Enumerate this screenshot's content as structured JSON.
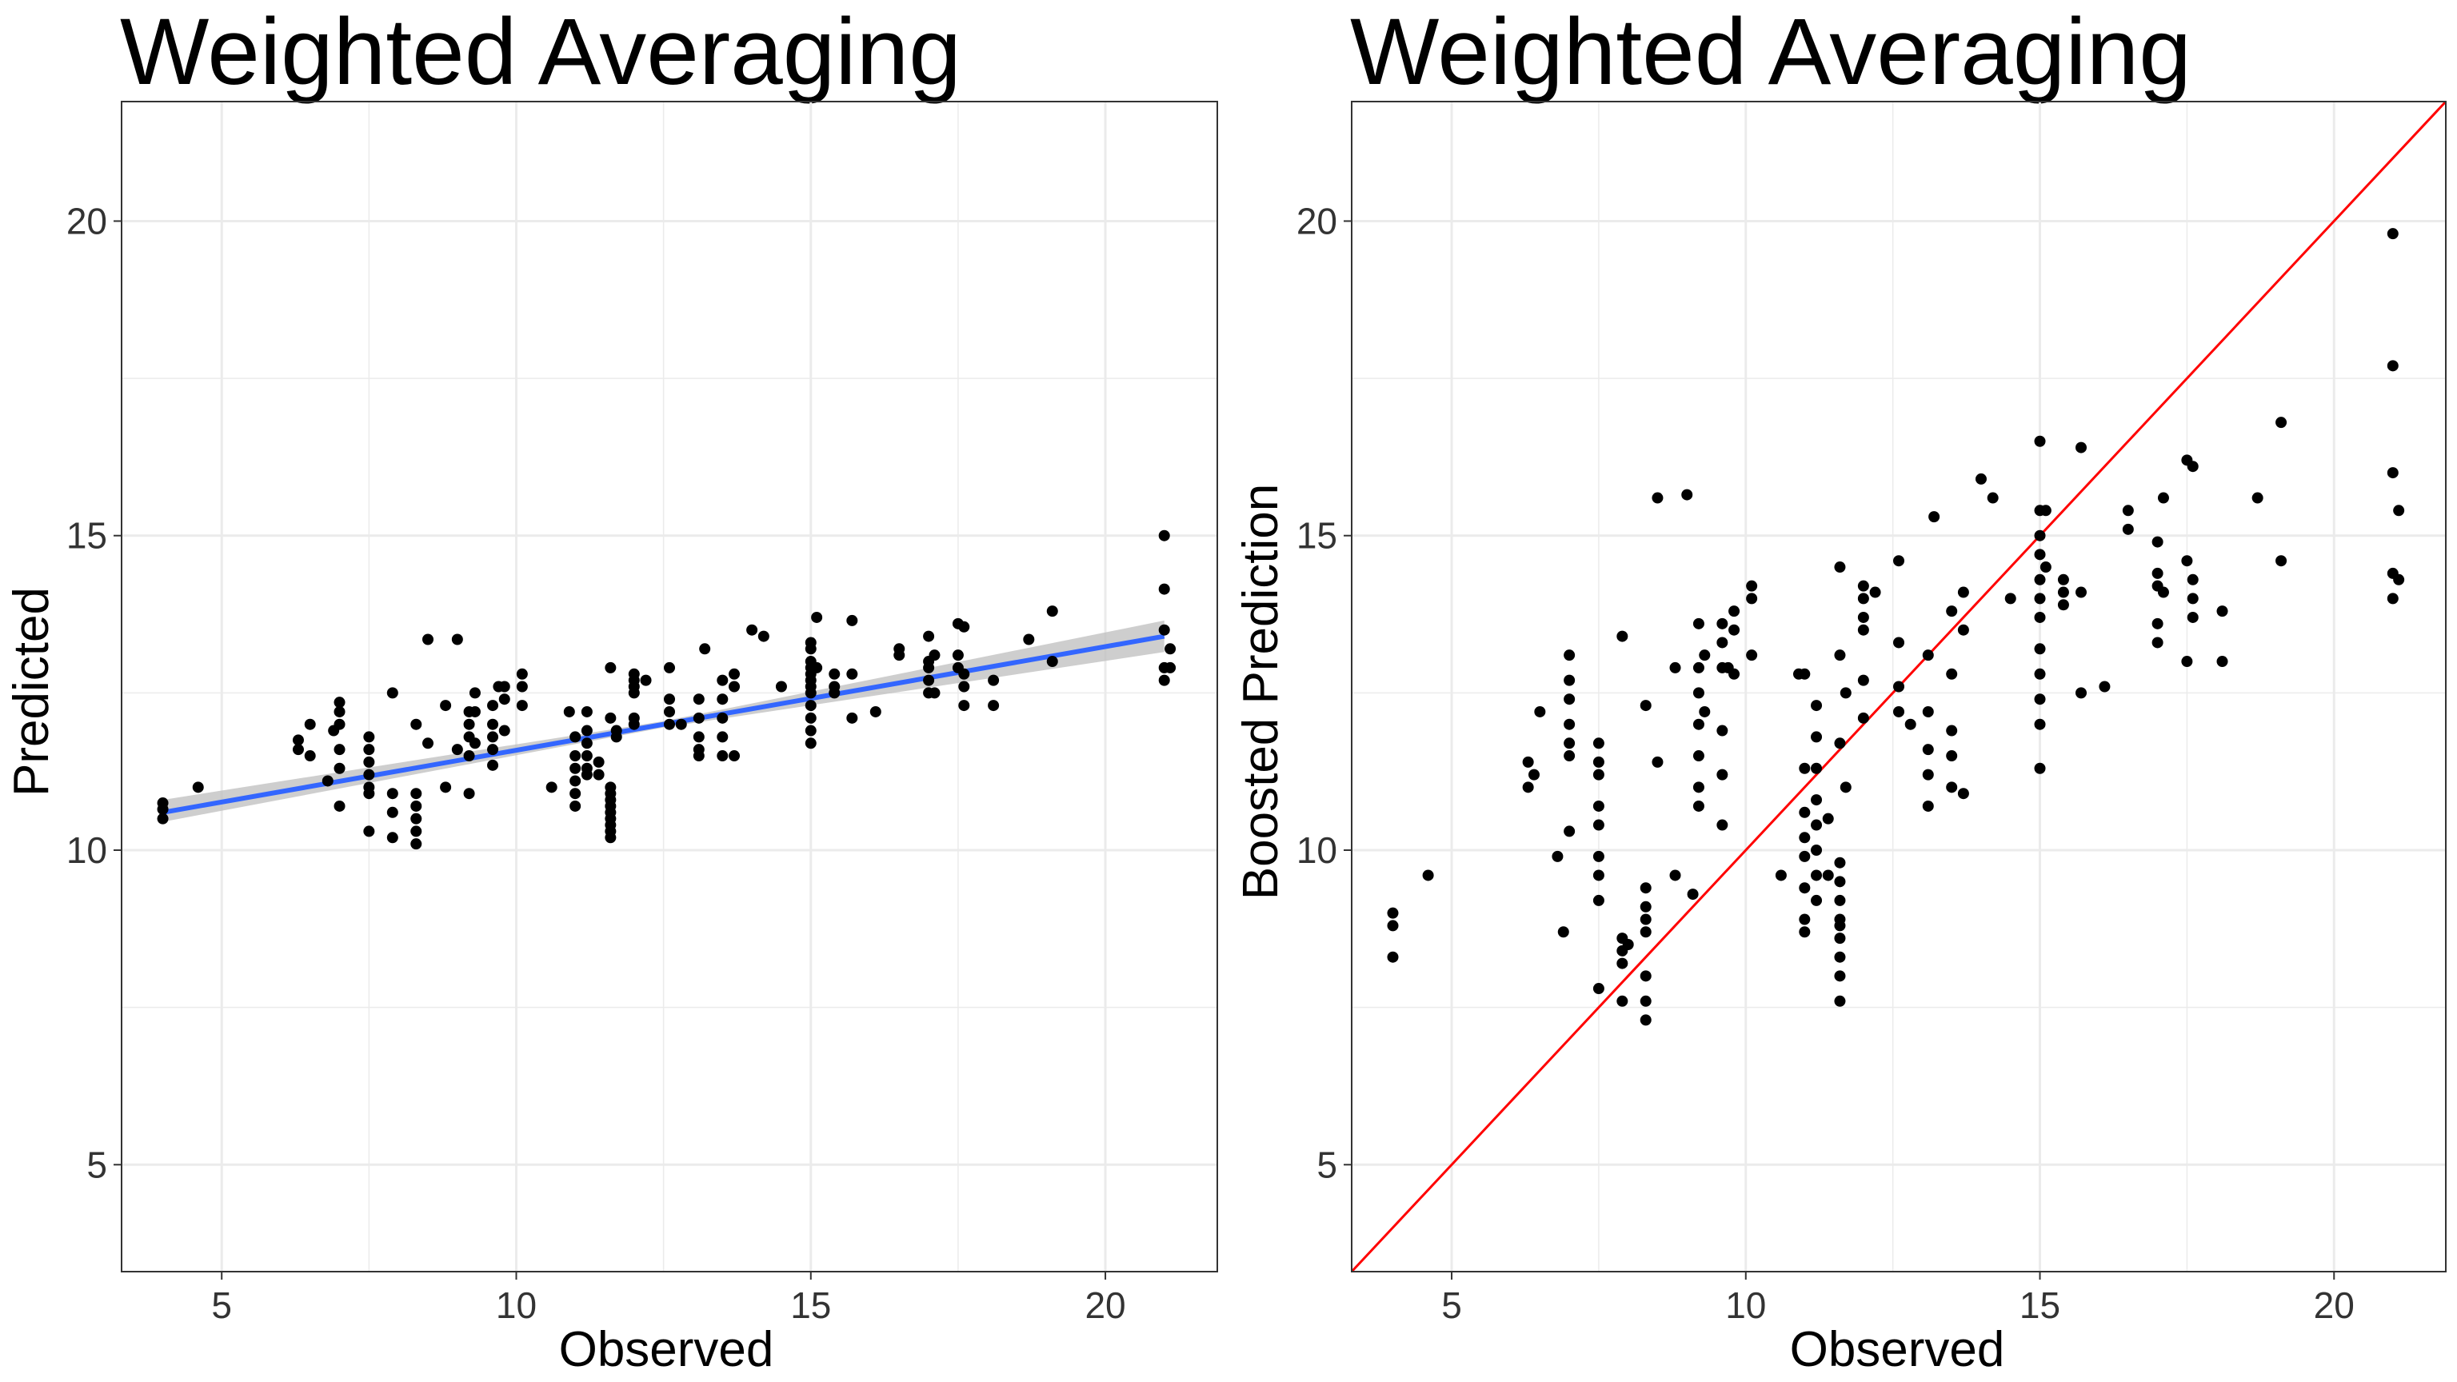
{
  "colors": {
    "background": "#ffffff",
    "grid": "#ebebeb",
    "panel_border": "#333333",
    "points": "#000000",
    "fit_line": "#3366ff",
    "confidence_band": "#bebebe",
    "identity_line": "#ff0000"
  },
  "chart_data": [
    {
      "type": "scatter",
      "title": "Weighted Averaging",
      "xlabel": "Observed",
      "ylabel": "Predicted",
      "xlim": [
        3.3,
        21.9
      ],
      "ylim": [
        3.3,
        21.9
      ],
      "x_ticks": [
        5,
        10,
        15,
        20
      ],
      "y_ticks": [
        5,
        10,
        15,
        20
      ],
      "grid": true,
      "smooth": {
        "method": "lm",
        "x": [
          4.0,
          21.0
        ],
        "y": [
          10.6,
          13.4
        ],
        "se_band": [
          [
            4.0,
            10.45,
            10.8
          ],
          [
            12.5,
            11.95,
            12.05
          ],
          [
            21.0,
            13.15,
            13.65
          ]
        ]
      },
      "points": [
        [
          4.0,
          10.5
        ],
        [
          4.0,
          10.65
        ],
        [
          4.0,
          10.75
        ],
        [
          4.6,
          11.0
        ],
        [
          6.3,
          11.6
        ],
        [
          6.3,
          11.75
        ],
        [
          6.5,
          12.0
        ],
        [
          6.5,
          11.5
        ],
        [
          6.8,
          11.1
        ],
        [
          6.9,
          11.9
        ],
        [
          7.0,
          12.0
        ],
        [
          7.0,
          12.2
        ],
        [
          7.0,
          12.35
        ],
        [
          7.0,
          11.6
        ],
        [
          7.0,
          11.3
        ],
        [
          7.0,
          10.7
        ],
        [
          7.5,
          11.8
        ],
        [
          7.5,
          11.6
        ],
        [
          7.5,
          11.4
        ],
        [
          7.5,
          11.2
        ],
        [
          7.5,
          11.0
        ],
        [
          7.5,
          10.9
        ],
        [
          7.5,
          10.3
        ],
        [
          7.9,
          12.5
        ],
        [
          7.9,
          10.9
        ],
        [
          7.9,
          10.6
        ],
        [
          7.9,
          10.2
        ],
        [
          8.3,
          12.0
        ],
        [
          8.3,
          10.9
        ],
        [
          8.3,
          10.7
        ],
        [
          8.3,
          10.5
        ],
        [
          8.3,
          10.3
        ],
        [
          8.3,
          10.1
        ],
        [
          8.5,
          13.35
        ],
        [
          8.5,
          11.7
        ],
        [
          8.8,
          12.3
        ],
        [
          8.8,
          11.0
        ],
        [
          9.0,
          13.35
        ],
        [
          9.0,
          11.6
        ],
        [
          9.2,
          12.2
        ],
        [
          9.2,
          12.0
        ],
        [
          9.2,
          11.8
        ],
        [
          9.2,
          11.5
        ],
        [
          9.2,
          10.9
        ],
        [
          9.3,
          12.5
        ],
        [
          9.3,
          12.2
        ],
        [
          9.3,
          11.7
        ],
        [
          9.6,
          12.3
        ],
        [
          9.6,
          12.0
        ],
        [
          9.6,
          11.8
        ],
        [
          9.6,
          11.6
        ],
        [
          9.6,
          11.35
        ],
        [
          9.7,
          12.6
        ],
        [
          9.8,
          12.6
        ],
        [
          9.8,
          12.4
        ],
        [
          9.8,
          11.9
        ],
        [
          10.1,
          12.8
        ],
        [
          10.1,
          12.6
        ],
        [
          10.1,
          12.3
        ],
        [
          10.6,
          11.0
        ],
        [
          10.9,
          12.2
        ],
        [
          11.0,
          11.8
        ],
        [
          11.0,
          11.5
        ],
        [
          11.0,
          11.3
        ],
        [
          11.0,
          11.1
        ],
        [
          11.0,
          10.9
        ],
        [
          11.0,
          10.7
        ],
        [
          11.2,
          12.2
        ],
        [
          11.2,
          11.9
        ],
        [
          11.2,
          11.7
        ],
        [
          11.2,
          11.5
        ],
        [
          11.2,
          11.3
        ],
        [
          11.2,
          11.2
        ],
        [
          11.4,
          11.4
        ],
        [
          11.4,
          11.2
        ],
        [
          11.6,
          12.9
        ],
        [
          11.6,
          12.1
        ],
        [
          11.6,
          11.0
        ],
        [
          11.6,
          10.8
        ],
        [
          11.6,
          10.6
        ],
        [
          11.6,
          10.4
        ],
        [
          11.6,
          10.2
        ],
        [
          11.6,
          10.3
        ],
        [
          11.6,
          10.5
        ],
        [
          11.6,
          10.7
        ],
        [
          11.6,
          10.9
        ],
        [
          11.7,
          11.8
        ],
        [
          11.7,
          11.9
        ],
        [
          12.0,
          12.8
        ],
        [
          12.0,
          12.7
        ],
        [
          12.0,
          12.6
        ],
        [
          12.0,
          12.5
        ],
        [
          12.0,
          12.1
        ],
        [
          12.0,
          12.0
        ],
        [
          12.2,
          12.7
        ],
        [
          12.6,
          12.9
        ],
        [
          12.6,
          12.4
        ],
        [
          12.6,
          12.2
        ],
        [
          12.6,
          12.0
        ],
        [
          12.8,
          12.0
        ],
        [
          13.1,
          12.4
        ],
        [
          13.1,
          12.1
        ],
        [
          13.1,
          11.8
        ],
        [
          13.1,
          11.6
        ],
        [
          13.1,
          11.5
        ],
        [
          13.2,
          13.2
        ],
        [
          13.5,
          12.7
        ],
        [
          13.5,
          12.4
        ],
        [
          13.5,
          12.1
        ],
        [
          13.5,
          11.8
        ],
        [
          13.5,
          11.5
        ],
        [
          13.7,
          12.8
        ],
        [
          13.7,
          12.6
        ],
        [
          13.7,
          11.5
        ],
        [
          14.0,
          13.5
        ],
        [
          14.2,
          13.4
        ],
        [
          14.5,
          12.6
        ],
        [
          15.0,
          13.3
        ],
        [
          15.0,
          13.2
        ],
        [
          15.0,
          13.0
        ],
        [
          15.0,
          12.9
        ],
        [
          15.0,
          12.8
        ],
        [
          15.0,
          12.7
        ],
        [
          15.0,
          12.5
        ],
        [
          15.0,
          12.3
        ],
        [
          15.0,
          12.1
        ],
        [
          15.0,
          11.9
        ],
        [
          15.0,
          11.7
        ],
        [
          15.0,
          12.6
        ],
        [
          15.1,
          13.7
        ],
        [
          15.1,
          12.9
        ],
        [
          15.4,
          12.8
        ],
        [
          15.4,
          12.6
        ],
        [
          15.4,
          12.5
        ],
        [
          15.7,
          13.65
        ],
        [
          15.7,
          12.8
        ],
        [
          15.7,
          12.1
        ],
        [
          16.1,
          12.2
        ],
        [
          16.5,
          13.2
        ],
        [
          16.5,
          13.1
        ],
        [
          17.0,
          13.4
        ],
        [
          17.0,
          13.0
        ],
        [
          17.0,
          12.9
        ],
        [
          17.0,
          12.7
        ],
        [
          17.0,
          12.5
        ],
        [
          17.1,
          13.1
        ],
        [
          17.1,
          12.5
        ],
        [
          17.5,
          13.6
        ],
        [
          17.5,
          13.1
        ],
        [
          17.5,
          12.9
        ],
        [
          17.6,
          13.55
        ],
        [
          17.6,
          12.8
        ],
        [
          17.6,
          12.6
        ],
        [
          17.6,
          12.3
        ],
        [
          18.1,
          12.7
        ],
        [
          18.1,
          12.3
        ],
        [
          18.7,
          13.35
        ],
        [
          19.1,
          13.8
        ],
        [
          19.1,
          13.0
        ],
        [
          21.0,
          15.0
        ],
        [
          21.0,
          14.15
        ],
        [
          21.0,
          13.5
        ],
        [
          21.0,
          12.9
        ],
        [
          21.0,
          12.7
        ],
        [
          21.1,
          13.2
        ],
        [
          21.1,
          12.9
        ]
      ]
    },
    {
      "type": "scatter",
      "title": "Weighted Averaging",
      "xlabel": "Observed",
      "ylabel": "Boosted Prediction",
      "xlim": [
        3.3,
        21.9
      ],
      "ylim": [
        3.3,
        21.9
      ],
      "x_ticks": [
        5,
        10,
        15,
        20
      ],
      "y_ticks": [
        5,
        10,
        15,
        20
      ],
      "grid": true,
      "reference_line": {
        "slope": 1,
        "intercept": 0
      },
      "points": [
        [
          4.0,
          9.0
        ],
        [
          4.0,
          8.8
        ],
        [
          4.0,
          8.3
        ],
        [
          4.6,
          9.6
        ],
        [
          6.3,
          11.0
        ],
        [
          6.3,
          11.4
        ],
        [
          6.4,
          11.2
        ],
        [
          6.5,
          12.2
        ],
        [
          6.8,
          9.9
        ],
        [
          6.9,
          8.7
        ],
        [
          7.0,
          13.1
        ],
        [
          7.0,
          12.7
        ],
        [
          7.0,
          12.4
        ],
        [
          7.0,
          11.7
        ],
        [
          7.0,
          11.5
        ],
        [
          7.0,
          10.3
        ],
        [
          7.0,
          12.0
        ],
        [
          7.5,
          11.7
        ],
        [
          7.5,
          11.4
        ],
        [
          7.5,
          11.2
        ],
        [
          7.5,
          10.7
        ],
        [
          7.5,
          10.4
        ],
        [
          7.5,
          9.9
        ],
        [
          7.5,
          9.6
        ],
        [
          7.5,
          9.2
        ],
        [
          7.5,
          7.8
        ],
        [
          7.9,
          13.4
        ],
        [
          7.9,
          8.6
        ],
        [
          7.9,
          8.4
        ],
        [
          7.9,
          8.2
        ],
        [
          8.0,
          8.5
        ],
        [
          7.9,
          7.6
        ],
        [
          8.3,
          12.3
        ],
        [
          8.3,
          9.4
        ],
        [
          8.3,
          9.1
        ],
        [
          8.3,
          8.9
        ],
        [
          8.3,
          8.7
        ],
        [
          8.3,
          8.0
        ],
        [
          8.3,
          7.6
        ],
        [
          8.3,
          7.3
        ],
        [
          8.5,
          15.6
        ],
        [
          8.5,
          11.4
        ],
        [
          8.8,
          12.9
        ],
        [
          8.8,
          9.6
        ],
        [
          9.0,
          15.65
        ],
        [
          9.1,
          9.3
        ],
        [
          9.2,
          13.6
        ],
        [
          9.2,
          12.9
        ],
        [
          9.2,
          12.5
        ],
        [
          9.2,
          12.0
        ],
        [
          9.2,
          11.5
        ],
        [
          9.2,
          11.0
        ],
        [
          9.2,
          10.7
        ],
        [
          9.3,
          12.2
        ],
        [
          9.3,
          13.1
        ],
        [
          9.6,
          13.6
        ],
        [
          9.6,
          13.3
        ],
        [
          9.6,
          12.9
        ],
        [
          9.6,
          11.9
        ],
        [
          9.6,
          11.2
        ],
        [
          9.6,
          10.4
        ],
        [
          9.7,
          12.9
        ],
        [
          9.8,
          13.8
        ],
        [
          9.8,
          13.5
        ],
        [
          9.8,
          12.8
        ],
        [
          10.1,
          14.2
        ],
        [
          10.1,
          14.0
        ],
        [
          10.1,
          13.1
        ],
        [
          10.6,
          9.6
        ],
        [
          10.9,
          12.8
        ],
        [
          11.0,
          12.8
        ],
        [
          11.0,
          11.3
        ],
        [
          11.0,
          10.6
        ],
        [
          11.0,
          10.2
        ],
        [
          11.0,
          9.9
        ],
        [
          11.0,
          9.4
        ],
        [
          11.0,
          8.7
        ],
        [
          11.0,
          8.9
        ],
        [
          11.2,
          12.3
        ],
        [
          11.2,
          11.8
        ],
        [
          11.2,
          11.3
        ],
        [
          11.2,
          10.8
        ],
        [
          11.2,
          10.4
        ],
        [
          11.2,
          10.0
        ],
        [
          11.2,
          9.6
        ],
        [
          11.2,
          9.2
        ],
        [
          11.4,
          10.5
        ],
        [
          11.4,
          9.6
        ],
        [
          11.6,
          14.5
        ],
        [
          11.6,
          13.1
        ],
        [
          11.6,
          11.7
        ],
        [
          11.6,
          9.8
        ],
        [
          11.6,
          9.5
        ],
        [
          11.6,
          9.2
        ],
        [
          11.6,
          8.9
        ],
        [
          11.6,
          8.6
        ],
        [
          11.6,
          8.3
        ],
        [
          11.6,
          8.0
        ],
        [
          11.6,
          7.6
        ],
        [
          11.6,
          8.8
        ],
        [
          11.7,
          12.5
        ],
        [
          11.7,
          11.0
        ],
        [
          12.0,
          14.2
        ],
        [
          12.0,
          14.0
        ],
        [
          12.0,
          13.7
        ],
        [
          12.0,
          13.5
        ],
        [
          12.0,
          12.7
        ],
        [
          12.0,
          12.1
        ],
        [
          12.2,
          14.1
        ],
        [
          12.6,
          14.6
        ],
        [
          12.6,
          13.3
        ],
        [
          12.6,
          12.6
        ],
        [
          12.6,
          12.2
        ],
        [
          12.8,
          12.0
        ],
        [
          13.1,
          13.1
        ],
        [
          13.1,
          12.2
        ],
        [
          13.1,
          11.6
        ],
        [
          13.1,
          11.2
        ],
        [
          13.1,
          10.7
        ],
        [
          13.2,
          15.3
        ],
        [
          13.5,
          13.8
        ],
        [
          13.5,
          12.8
        ],
        [
          13.5,
          11.9
        ],
        [
          13.5,
          11.5
        ],
        [
          13.5,
          11.0
        ],
        [
          13.7,
          14.1
        ],
        [
          13.7,
          13.5
        ],
        [
          13.7,
          10.9
        ],
        [
          14.0,
          15.9
        ],
        [
          14.2,
          15.6
        ],
        [
          14.5,
          14.0
        ],
        [
          15.0,
          16.5
        ],
        [
          15.0,
          15.4
        ],
        [
          15.0,
          15.0
        ],
        [
          15.0,
          14.7
        ],
        [
          15.0,
          14.3
        ],
        [
          15.0,
          14.0
        ],
        [
          15.0,
          13.7
        ],
        [
          15.0,
          13.2
        ],
        [
          15.0,
          12.8
        ],
        [
          15.0,
          12.4
        ],
        [
          15.0,
          12.0
        ],
        [
          15.0,
          11.3
        ],
        [
          15.1,
          15.4
        ],
        [
          15.1,
          14.5
        ],
        [
          15.4,
          14.3
        ],
        [
          15.4,
          14.1
        ],
        [
          15.4,
          13.9
        ],
        [
          15.7,
          16.4
        ],
        [
          15.7,
          14.1
        ],
        [
          15.7,
          12.5
        ],
        [
          16.1,
          12.6
        ],
        [
          16.5,
          15.4
        ],
        [
          16.5,
          15.1
        ],
        [
          17.0,
          14.9
        ],
        [
          17.0,
          14.4
        ],
        [
          17.0,
          14.2
        ],
        [
          17.0,
          13.6
        ],
        [
          17.0,
          13.3
        ],
        [
          17.1,
          15.6
        ],
        [
          17.1,
          14.1
        ],
        [
          17.5,
          16.2
        ],
        [
          17.5,
          14.6
        ],
        [
          17.5,
          13.0
        ],
        [
          17.6,
          16.1
        ],
        [
          17.6,
          14.3
        ],
        [
          17.6,
          14.0
        ],
        [
          17.6,
          13.7
        ],
        [
          18.1,
          13.8
        ],
        [
          18.1,
          13.0
        ],
        [
          18.7,
          15.6
        ],
        [
          19.1,
          16.8
        ],
        [
          19.1,
          14.6
        ],
        [
          21.0,
          19.8
        ],
        [
          21.0,
          17.7
        ],
        [
          21.0,
          16.0
        ],
        [
          21.0,
          14.4
        ],
        [
          21.0,
          14.0
        ],
        [
          21.1,
          15.4
        ],
        [
          21.1,
          14.3
        ]
      ]
    }
  ]
}
